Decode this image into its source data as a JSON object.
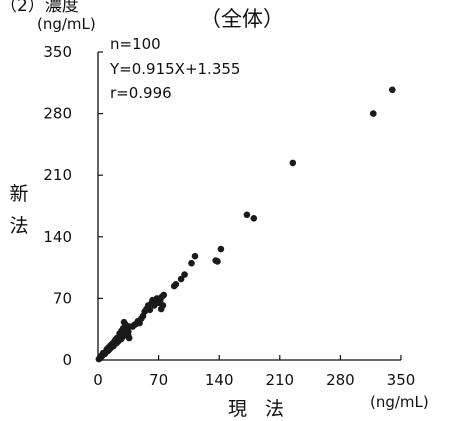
{
  "header_fragment": "（2）濃度",
  "chart_data": {
    "type": "scatter",
    "title": "（全体）",
    "xlabel": "現 法",
    "ylabel": "新法",
    "x_unit": "(ng/mL)",
    "y_unit": "(ng/mL)",
    "xlim": [
      0,
      350
    ],
    "ylim": [
      0,
      350
    ],
    "x_ticks": [
      0,
      70,
      140,
      210,
      280,
      350
    ],
    "y_ticks": [
      0,
      70,
      140,
      210,
      280,
      350
    ],
    "grid": false,
    "annotations": [
      "n=100",
      "Y=0.915X+1.355",
      "r=0.996"
    ],
    "point_color": "#1a1a1a",
    "points": [
      {
        "x": 1,
        "y": 1
      },
      {
        "x": 2,
        "y": 2
      },
      {
        "x": 3,
        "y": 3
      },
      {
        "x": 3,
        "y": 4
      },
      {
        "x": 4,
        "y": 4
      },
      {
        "x": 5,
        "y": 5
      },
      {
        "x": 5,
        "y": 6
      },
      {
        "x": 6,
        "y": 6
      },
      {
        "x": 7,
        "y": 7
      },
      {
        "x": 8,
        "y": 7
      },
      {
        "x": 8,
        "y": 8
      },
      {
        "x": 9,
        "y": 9
      },
      {
        "x": 10,
        "y": 10
      },
      {
        "x": 11,
        "y": 10
      },
      {
        "x": 12,
        "y": 11
      },
      {
        "x": 12,
        "y": 12
      },
      {
        "x": 13,
        "y": 12
      },
      {
        "x": 14,
        "y": 13
      },
      {
        "x": 15,
        "y": 14
      },
      {
        "x": 16,
        "y": 15
      },
      {
        "x": 17,
        "y": 16
      },
      {
        "x": 18,
        "y": 16
      },
      {
        "x": 18,
        "y": 17
      },
      {
        "x": 19,
        "y": 18
      },
      {
        "x": 20,
        "y": 19
      },
      {
        "x": 21,
        "y": 19
      },
      {
        "x": 22,
        "y": 20
      },
      {
        "x": 23,
        "y": 21
      },
      {
        "x": 23,
        "y": 22
      },
      {
        "x": 24,
        "y": 22
      },
      {
        "x": 25,
        "y": 23
      },
      {
        "x": 26,
        "y": 25
      },
      {
        "x": 27,
        "y": 24
      },
      {
        "x": 28,
        "y": 26
      },
      {
        "x": 29,
        "y": 27
      },
      {
        "x": 30,
        "y": 28
      },
      {
        "x": 20,
        "y": 23
      },
      {
        "x": 22,
        "y": 25
      },
      {
        "x": 24,
        "y": 26
      },
      {
        "x": 26,
        "y": 29
      },
      {
        "x": 28,
        "y": 31
      },
      {
        "x": 30,
        "y": 33
      },
      {
        "x": 31,
        "y": 35
      },
      {
        "x": 32,
        "y": 30
      },
      {
        "x": 33,
        "y": 34
      },
      {
        "x": 34,
        "y": 36
      },
      {
        "x": 35,
        "y": 32
      },
      {
        "x": 36,
        "y": 38
      },
      {
        "x": 25,
        "y": 30
      },
      {
        "x": 27,
        "y": 33
      },
      {
        "x": 29,
        "y": 36
      },
      {
        "x": 30,
        "y": 43
      },
      {
        "x": 32,
        "y": 40
      },
      {
        "x": 34,
        "y": 30
      },
      {
        "x": 35,
        "y": 28
      },
      {
        "x": 36,
        "y": 25
      },
      {
        "x": 15,
        "y": 17
      },
      {
        "x": 17,
        "y": 19
      },
      {
        "x": 19,
        "y": 21
      },
      {
        "x": 21,
        "y": 23
      },
      {
        "x": 10,
        "y": 12
      },
      {
        "x": 12,
        "y": 14
      },
      {
        "x": 14,
        "y": 16
      },
      {
        "x": 6,
        "y": 8
      },
      {
        "x": 48,
        "y": 42
      },
      {
        "x": 50,
        "y": 47
      },
      {
        "x": 52,
        "y": 50
      },
      {
        "x": 54,
        "y": 55
      },
      {
        "x": 56,
        "y": 58
      },
      {
        "x": 58,
        "y": 62
      },
      {
        "x": 60,
        "y": 57
      },
      {
        "x": 62,
        "y": 65
      },
      {
        "x": 63,
        "y": 68
      },
      {
        "x": 65,
        "y": 62
      },
      {
        "x": 66,
        "y": 67
      },
      {
        "x": 68,
        "y": 70
      },
      {
        "x": 70,
        "y": 65
      },
      {
        "x": 72,
        "y": 68
      },
      {
        "x": 74,
        "y": 72
      },
      {
        "x": 76,
        "y": 74
      },
      {
        "x": 73,
        "y": 58
      },
      {
        "x": 75,
        "y": 62
      },
      {
        "x": 88,
        "y": 84
      },
      {
        "x": 90,
        "y": 86
      },
      {
        "x": 96,
        "y": 92
      },
      {
        "x": 100,
        "y": 97
      },
      {
        "x": 108,
        "y": 110
      },
      {
        "x": 112,
        "y": 118
      },
      {
        "x": 136,
        "y": 113
      },
      {
        "x": 138,
        "y": 112
      },
      {
        "x": 142,
        "y": 126
      },
      {
        "x": 172,
        "y": 165
      },
      {
        "x": 180,
        "y": 161
      },
      {
        "x": 225,
        "y": 224
      },
      {
        "x": 318,
        "y": 280
      },
      {
        "x": 340,
        "y": 307
      },
      {
        "x": 40,
        "y": 38
      },
      {
        "x": 42,
        "y": 40
      },
      {
        "x": 44,
        "y": 41
      },
      {
        "x": 46,
        "y": 44
      }
    ]
  }
}
